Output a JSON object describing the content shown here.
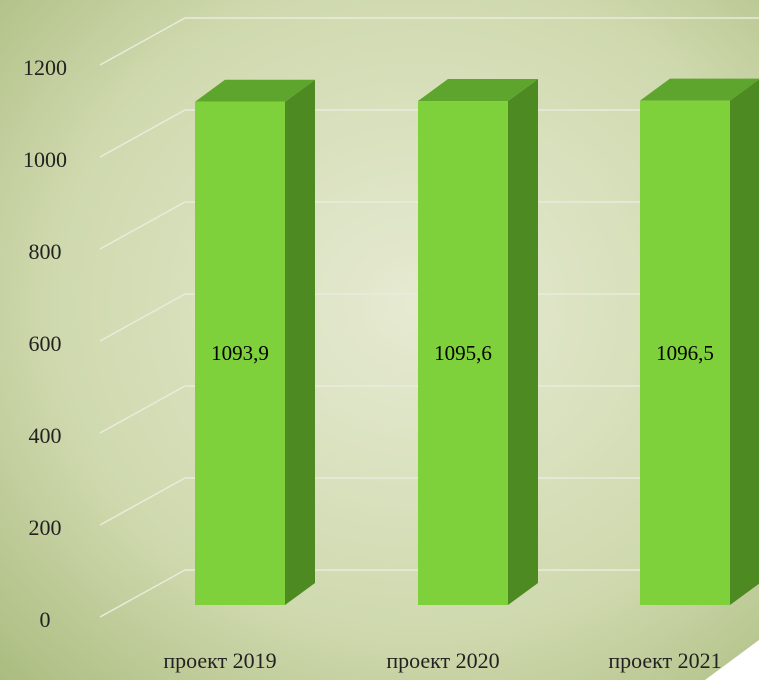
{
  "chart_data": {
    "type": "bar3d",
    "categories": [
      "проект 2019",
      "проект 2020",
      "проект 2021"
    ],
    "values": [
      1093.9,
      1095.6,
      1096.5
    ],
    "value_labels": [
      "1093,9",
      "1095,6",
      "1096,5"
    ],
    "color": "#7fd13b",
    "ylim": [
      0,
      1200
    ],
    "yticks": [
      0,
      200,
      400,
      600,
      800,
      1000,
      1200
    ],
    "grid": true
  }
}
